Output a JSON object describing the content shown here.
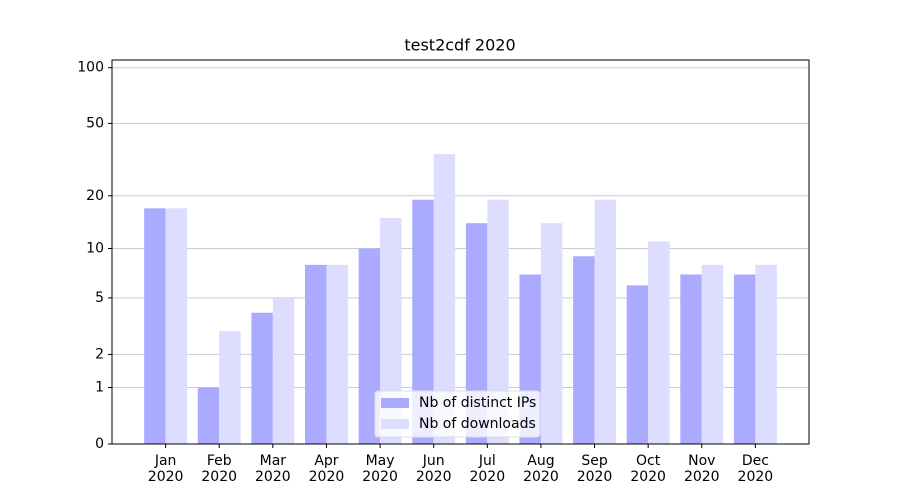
{
  "chart_data": {
    "type": "bar",
    "title": "test2cdf 2020",
    "categories": [
      "Jan\n2020",
      "Feb\n2020",
      "Mar\n2020",
      "Apr\n2020",
      "May\n2020",
      "Jun\n2020",
      "Jul\n2020",
      "Aug\n2020",
      "Sep\n2020",
      "Oct\n2020",
      "Nov\n2020",
      "Dec\n2020"
    ],
    "series": [
      {
        "name": "Nb of distinct IPs",
        "color": "#aaaaff",
        "values": [
          17,
          1,
          4,
          8,
          10,
          19,
          14,
          7,
          9,
          6,
          7,
          7
        ]
      },
      {
        "name": "Nb of downloads",
        "color": "#ddddff",
        "values": [
          17,
          3,
          5,
          8,
          15,
          34,
          19,
          14,
          19,
          11,
          8,
          8
        ]
      }
    ],
    "yscale": "symlog",
    "ylim": [
      0,
      110
    ],
    "yticks": [
      0,
      1,
      2,
      5,
      10,
      20,
      50,
      100
    ],
    "grid": true,
    "legend": "lower center"
  }
}
